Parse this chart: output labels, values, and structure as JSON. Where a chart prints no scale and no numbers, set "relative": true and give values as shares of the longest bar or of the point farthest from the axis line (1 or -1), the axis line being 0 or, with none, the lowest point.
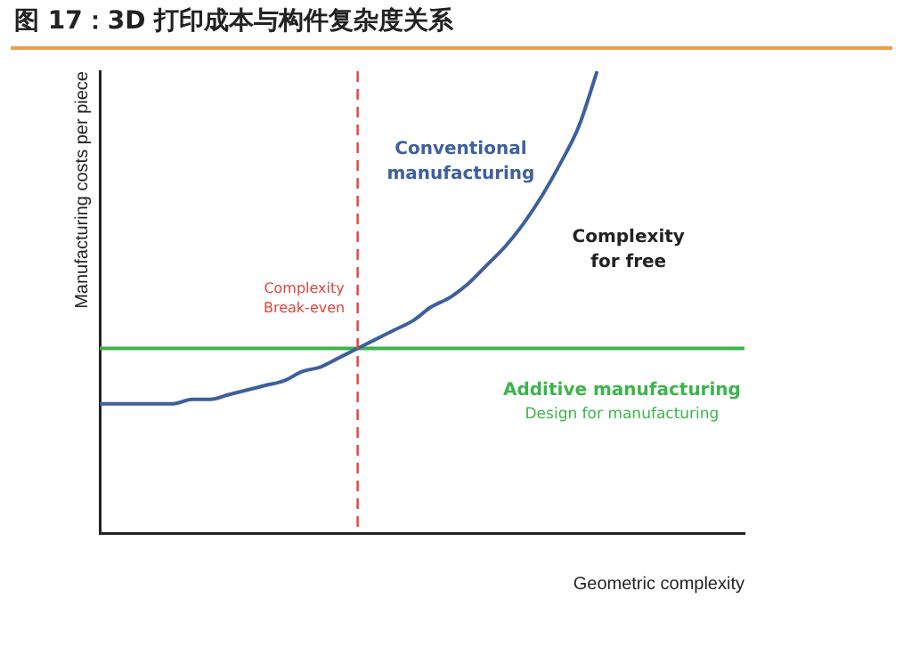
{
  "chart_data": {
    "type": "line",
    "title": "图 17：3D 打印成本与构件复杂度关系",
    "xlabel": "Geometric complexity",
    "ylabel": "Manufacturing costs per piece",
    "relative": true,
    "legend": false,
    "grid": false,
    "marker": "none",
    "categories": [
      null,
      null,
      null,
      null,
      null,
      null,
      null,
      null,
      null,
      null,
      null,
      null,
      null,
      null,
      null,
      null,
      null,
      null,
      null,
      null,
      null,
      null,
      null,
      null,
      null,
      null,
      null,
      null,
      null,
      null,
      null,
      null,
      null,
      null,
      null,
      null
    ],
    "series": [
      {
        "name": "Conventional manufacturing",
        "color": "#3e5f9e",
        "values": [
          0.28,
          0.28,
          0.28,
          0.28,
          0.28,
          0.29,
          0.29,
          0.3,
          0.31,
          0.32,
          0.33,
          0.35,
          0.36,
          0.38,
          0.4,
          0.42,
          0.44,
          0.46,
          0.49,
          0.51,
          0.54,
          0.58,
          0.62,
          0.67,
          0.73,
          0.8,
          0.88,
          1,
          null,
          null,
          null,
          null,
          null,
          null,
          null,
          null
        ]
      },
      {
        "name": "Additive manufacturing",
        "color": "#3cb44b",
        "values": [
          0.4,
          0.4,
          0.4,
          0.4,
          0.4,
          0.4,
          0.4,
          0.4,
          0.4,
          0.4,
          0.4,
          0.4,
          0.4,
          0.4,
          0.4,
          0.4,
          0.4,
          0.4,
          0.4,
          0.4,
          0.4,
          0.4,
          0.4,
          0.4,
          0.4,
          0.4,
          0.4,
          0.4,
          0.4,
          0.4,
          0.4,
          0.4,
          0.4,
          0.4,
          0.4,
          0.4
        ]
      }
    ],
    "annotations": [
      "Complexity Break-even",
      "Complexity for free",
      "Design for manufacturing"
    ]
  }
}
